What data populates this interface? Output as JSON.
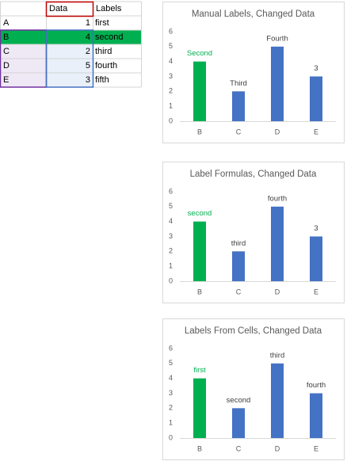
{
  "sheet": {
    "columns": [
      "Data",
      "Labels"
    ],
    "rows": [
      [
        "A",
        1,
        "first"
      ],
      [
        "B",
        4,
        "second"
      ],
      [
        "C",
        2,
        "third"
      ],
      [
        "D",
        5,
        "fourth"
      ],
      [
        "E",
        3,
        "fifth"
      ]
    ]
  },
  "chart_data": [
    {
      "type": "bar",
      "title": "Manual Labels, Changed Data",
      "categories": [
        "B",
        "C",
        "D",
        "E"
      ],
      "values": [
        4,
        2,
        5,
        3
      ],
      "value_labels": [
        "Second",
        "Third",
        "Fourth",
        "3"
      ],
      "colors": [
        "#00b050",
        "#4472c4",
        "#4472c4",
        "#4472c4"
      ],
      "label_colors": [
        "#00b050",
        "#404040",
        "#404040",
        "#404040"
      ],
      "ylim": [
        0,
        6
      ],
      "yticks": [
        0,
        1,
        2,
        3,
        4,
        5,
        6
      ]
    },
    {
      "type": "bar",
      "title": "Label Formulas, Changed Data",
      "categories": [
        "B",
        "C",
        "D",
        "E"
      ],
      "values": [
        4,
        2,
        5,
        3
      ],
      "value_labels": [
        "second",
        "third",
        "fourth",
        "3"
      ],
      "colors": [
        "#00b050",
        "#4472c4",
        "#4472c4",
        "#4472c4"
      ],
      "label_colors": [
        "#00b050",
        "#404040",
        "#404040",
        "#404040"
      ],
      "ylim": [
        0,
        6
      ],
      "yticks": [
        0,
        1,
        2,
        3,
        4,
        5,
        6
      ]
    },
    {
      "type": "bar",
      "title": "Labels From Cells, Changed Data",
      "categories": [
        "B",
        "C",
        "D",
        "E"
      ],
      "values": [
        4,
        2,
        5,
        3
      ],
      "value_labels": [
        "first",
        "second",
        "third",
        "fourth"
      ],
      "colors": [
        "#00b050",
        "#4472c4",
        "#4472c4",
        "#4472c4"
      ],
      "label_colors": [
        "#00b050",
        "#404040",
        "#404040",
        "#404040"
      ],
      "ylim": [
        0,
        6
      ],
      "yticks": [
        0,
        1,
        2,
        3,
        4,
        5,
        6
      ]
    }
  ]
}
